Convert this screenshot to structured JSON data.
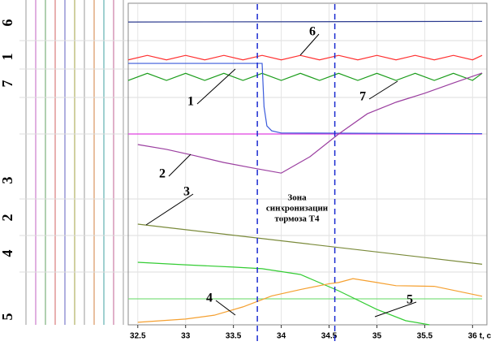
{
  "chart_data": {
    "type": "line",
    "xlabel": "t, c",
    "xlim": [
      32.4,
      36.15
    ],
    "xticks": [
      32.5,
      33.0,
      33.5,
      34.0,
      34.5,
      35.0,
      35.5,
      36.0
    ],
    "ylim": [
      0,
      100
    ],
    "markers": [
      33.75,
      34.56
    ],
    "zone_text": [
      "Зона",
      "синхронизации",
      "тормоза Т4"
    ],
    "group_labels": [
      "6",
      "1",
      "7",
      "3",
      "2",
      "4",
      "5"
    ],
    "series": [
      {
        "color": "#2b3a8f",
        "x": [
          32.4,
          36.1
        ],
        "values": [
          94.4,
          94.6
        ]
      },
      {
        "name": "6",
        "color": "#ff3030",
        "x": [
          32.4,
          32.6,
          32.8,
          33.0,
          33.2,
          33.4,
          33.6,
          33.8,
          34.0,
          34.2,
          34.4,
          34.6,
          34.8,
          35.0,
          35.2,
          35.4,
          35.6,
          35.8,
          36.0,
          36.1
        ],
        "values": [
          82.6,
          84.0,
          82.6,
          84.0,
          82.6,
          84.0,
          82.6,
          84.0,
          82.6,
          84.0,
          82.6,
          84.0,
          82.6,
          84.0,
          82.6,
          84.0,
          82.6,
          84.0,
          82.6,
          84.0
        ]
      },
      {
        "name": "7",
        "color": "#1a9c1a",
        "x": [
          32.4,
          32.6,
          32.8,
          33.0,
          33.2,
          33.4,
          33.6,
          33.8,
          34.0,
          34.2,
          34.4,
          34.6,
          34.8,
          35.0,
          35.2,
          35.4,
          35.6,
          35.8,
          36.0,
          36.1
        ],
        "values": [
          76.2,
          78.4,
          76.2,
          78.4,
          76.2,
          78.4,
          76.2,
          78.4,
          76.2,
          78.4,
          76.2,
          78.4,
          76.2,
          78.4,
          76.2,
          78.4,
          76.2,
          78.4,
          76.2,
          78.4
        ]
      },
      {
        "color": "#e040e0",
        "x": [
          32.4,
          36.1
        ],
        "values": [
          59.5,
          59.5
        ]
      },
      {
        "name": "1",
        "color": "#3b5bdb",
        "x": [
          32.4,
          33.8,
          33.82,
          33.85,
          33.9,
          34.0,
          36.1
        ],
        "values": [
          81.5,
          81.5,
          68,
          62,
          60.5,
          59.8,
          59.6
        ]
      },
      {
        "name": "2",
        "color": "#9b3fa0",
        "x": [
          32.5,
          32.8,
          33.1,
          33.4,
          33.7,
          34.0,
          34.3,
          34.6,
          34.9,
          35.2,
          35.5,
          35.8,
          36.1
        ],
        "values": [
          56.2,
          54.7,
          52.7,
          50.6,
          48.9,
          47.3,
          52.4,
          59.5,
          65.8,
          69.4,
          72.2,
          75.4,
          78.5
        ]
      },
      {
        "name": "3",
        "color": "#7a8a3a",
        "x": [
          32.5,
          36.1
        ],
        "values": [
          31.4,
          18.9
        ]
      },
      {
        "color": "#80e080",
        "x": [
          32.4,
          36.1
        ],
        "values": [
          8.1,
          8.1
        ]
      },
      {
        "name": "5",
        "color": "#33cc33",
        "x": [
          32.5,
          33.0,
          33.5,
          33.8,
          34.2,
          34.6,
          35.0,
          35.3,
          35.55
        ],
        "values": [
          19.5,
          18.7,
          18.0,
          17.5,
          15.7,
          10.6,
          4.8,
          1.3,
          0
        ]
      },
      {
        "name": "4",
        "color": "#f5a030",
        "x": [
          32.5,
          33.0,
          33.3,
          33.6,
          33.9,
          34.2,
          34.5,
          34.6,
          34.75,
          35.0,
          35.2,
          35.6,
          36.1
        ],
        "values": [
          0.8,
          1.8,
          3.0,
          5.6,
          9.0,
          11.0,
          12.8,
          13.2,
          14.4,
          13.2,
          12.2,
          12.0,
          8.9
        ]
      }
    ]
  }
}
